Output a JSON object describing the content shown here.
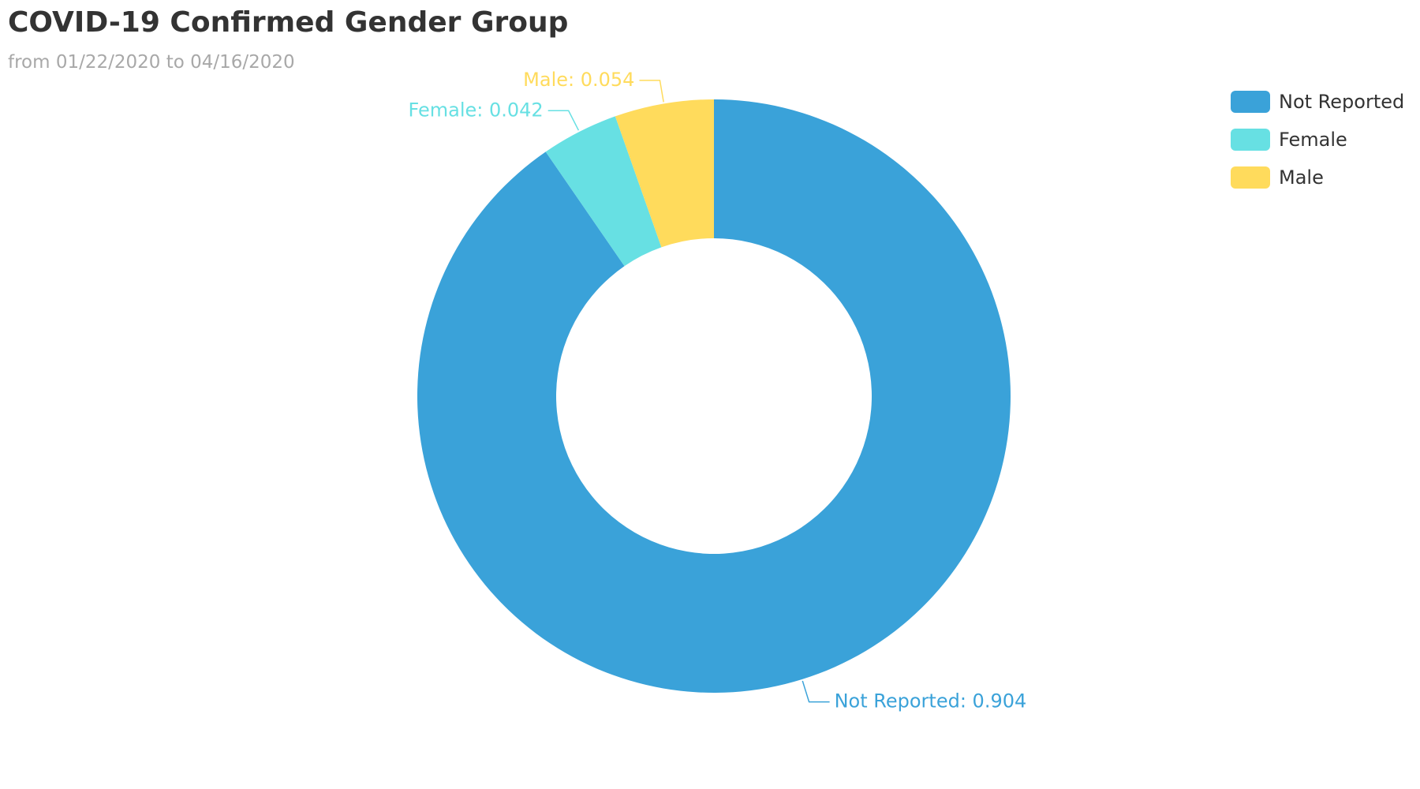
{
  "title": "COVID-19 Confirmed Gender Group",
  "subtitle": "from 01/22/2020 to 04/16/2020",
  "chart_data": {
    "type": "pie",
    "style": "donut",
    "title": "COVID-19 Confirmed Gender Group",
    "subtitle": "from 01/22/2020 to 04/16/2020",
    "legend_position": "top-right",
    "slices": [
      {
        "name": "Not Reported",
        "value": 0.904,
        "color": "#3aa2d9",
        "label": "Not Reported: 0.904"
      },
      {
        "name": "Female",
        "value": 0.042,
        "color": "#67e0e3",
        "label": "Female: 0.042"
      },
      {
        "name": "Male",
        "value": 0.054,
        "color": "#ffdb5c",
        "label": "Male: 0.054"
      }
    ]
  },
  "legend": {
    "items": [
      {
        "label": "Not Reported",
        "color": "#3aa2d9"
      },
      {
        "label": "Female",
        "color": "#67e0e3"
      },
      {
        "label": "Male",
        "color": "#ffdb5c"
      }
    ]
  }
}
